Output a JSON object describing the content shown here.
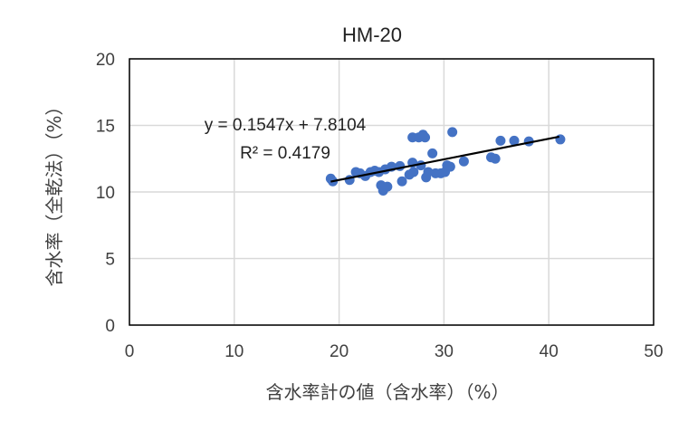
{
  "chart_data": {
    "type": "scatter",
    "title": "HM-20",
    "xlabel": "含水率計の値（含水率）（%）",
    "ylabel": "含水率（全乾法）（%）",
    "xlim": [
      0,
      50
    ],
    "ylim": [
      0,
      20
    ],
    "x_ticks": [
      "0",
      "10",
      "20",
      "30",
      "40",
      "50"
    ],
    "y_ticks": [
      "0",
      "5",
      "10",
      "15",
      "20"
    ],
    "grid": true,
    "marker_color": "#4472C4",
    "trendline": {
      "type": "linear",
      "slope": 0.1547,
      "intercept": 7.8104,
      "x_range": [
        19.2,
        41.0
      ],
      "equation": "y = 0.1547x + 7.8104",
      "r_squared": "R² = 0.4179",
      "color": "#000000"
    },
    "points": [
      {
        "x": 19.2,
        "y": 11.0
      },
      {
        "x": 19.4,
        "y": 10.8
      },
      {
        "x": 21.0,
        "y": 10.9
      },
      {
        "x": 21.6,
        "y": 11.5
      },
      {
        "x": 22.0,
        "y": 11.4
      },
      {
        "x": 22.5,
        "y": 11.2
      },
      {
        "x": 23.0,
        "y": 11.5
      },
      {
        "x": 23.4,
        "y": 11.6
      },
      {
        "x": 23.8,
        "y": 11.5
      },
      {
        "x": 24.0,
        "y": 10.5
      },
      {
        "x": 24.2,
        "y": 10.1
      },
      {
        "x": 24.4,
        "y": 11.7
      },
      {
        "x": 24.6,
        "y": 10.4
      },
      {
        "x": 25.0,
        "y": 11.9
      },
      {
        "x": 25.8,
        "y": 11.95
      },
      {
        "x": 26.0,
        "y": 10.8
      },
      {
        "x": 26.7,
        "y": 11.3
      },
      {
        "x": 27.0,
        "y": 12.2
      },
      {
        "x": 27.1,
        "y": 11.5
      },
      {
        "x": 27.0,
        "y": 14.1
      },
      {
        "x": 27.6,
        "y": 14.1
      },
      {
        "x": 27.8,
        "y": 12.0
      },
      {
        "x": 28.0,
        "y": 14.3
      },
      {
        "x": 28.2,
        "y": 14.1
      },
      {
        "x": 28.3,
        "y": 11.1
      },
      {
        "x": 28.5,
        "y": 11.5
      },
      {
        "x": 28.9,
        "y": 12.9
      },
      {
        "x": 29.2,
        "y": 11.4
      },
      {
        "x": 29.7,
        "y": 11.4
      },
      {
        "x": 30.1,
        "y": 11.5
      },
      {
        "x": 30.3,
        "y": 12.0
      },
      {
        "x": 30.6,
        "y": 11.9
      },
      {
        "x": 30.8,
        "y": 14.5
      },
      {
        "x": 31.9,
        "y": 12.3
      },
      {
        "x": 34.5,
        "y": 12.6
      },
      {
        "x": 34.9,
        "y": 12.5
      },
      {
        "x": 35.4,
        "y": 13.85
      },
      {
        "x": 36.7,
        "y": 13.85
      },
      {
        "x": 38.1,
        "y": 13.8
      },
      {
        "x": 41.1,
        "y": 13.95
      }
    ]
  }
}
